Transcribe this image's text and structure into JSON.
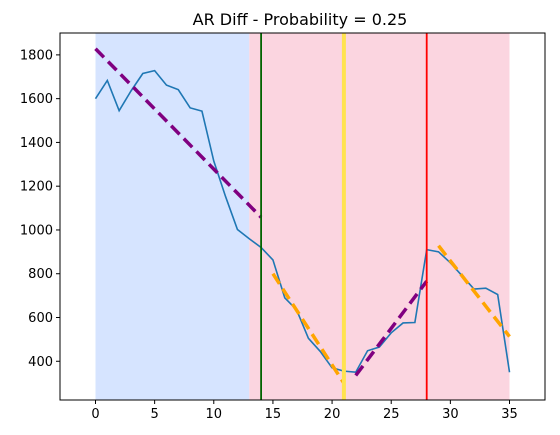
{
  "chart_data": {
    "type": "line",
    "title": "AR Diff - Probability = 0.25",
    "xlabel": "",
    "ylabel": "",
    "xlim": [
      -3.0,
      38.0
    ],
    "ylim": [
      223,
      1900
    ],
    "x_ticks": [
      0,
      5,
      10,
      15,
      20,
      25,
      30,
      35
    ],
    "y_ticks": [
      400,
      600,
      800,
      1000,
      1200,
      1400,
      1600,
      1800
    ],
    "grid": false,
    "series": [
      {
        "color": "#1f77b4",
        "style": "solid",
        "x": [
          0,
          1,
          2,
          3,
          4,
          5,
          6,
          7,
          8,
          9,
          10,
          11,
          12,
          13,
          14,
          15,
          16,
          17,
          18,
          19,
          20,
          21,
          22,
          23,
          24,
          25,
          26,
          27,
          28,
          29,
          30,
          31,
          32,
          33,
          34,
          35
        ],
        "values": [
          1600,
          1683,
          1545,
          1635,
          1715,
          1728,
          1662,
          1641,
          1558,
          1543,
          1315,
          1152,
          1002,
          960,
          920,
          863,
          690,
          635,
          505,
          445,
          370,
          355,
          350,
          448,
          465,
          530,
          575,
          577,
          910,
          900,
          850,
          790,
          730,
          734,
          705,
          350
        ]
      }
    ],
    "trend_lines": [
      {
        "color": "#800080",
        "style": "dashed",
        "x": [
          0,
          14
        ],
        "values": [
          1828,
          1058
        ]
      },
      {
        "color": "#ffa500",
        "style": "dashed",
        "x": [
          15,
          21
        ],
        "values": [
          800,
          300
        ]
      },
      {
        "color": "#800080",
        "style": "dashed",
        "x": [
          22,
          28
        ],
        "values": [
          335,
          766
        ]
      },
      {
        "color": "#ffa500",
        "style": "dashed",
        "x": [
          29,
          35
        ],
        "values": [
          928,
          513
        ]
      }
    ],
    "shaded_regions": [
      {
        "color": "#d6e4ff",
        "x_start": 0,
        "x_end": 13
      },
      {
        "color": "#fbd5e0",
        "x_start": 13,
        "x_end": 35
      }
    ],
    "vertical_lines": [
      {
        "color": "#006400",
        "x": 14
      },
      {
        "color": "#ffe34f",
        "x": 21
      },
      {
        "color": "#ff0000",
        "x": 28
      }
    ]
  }
}
